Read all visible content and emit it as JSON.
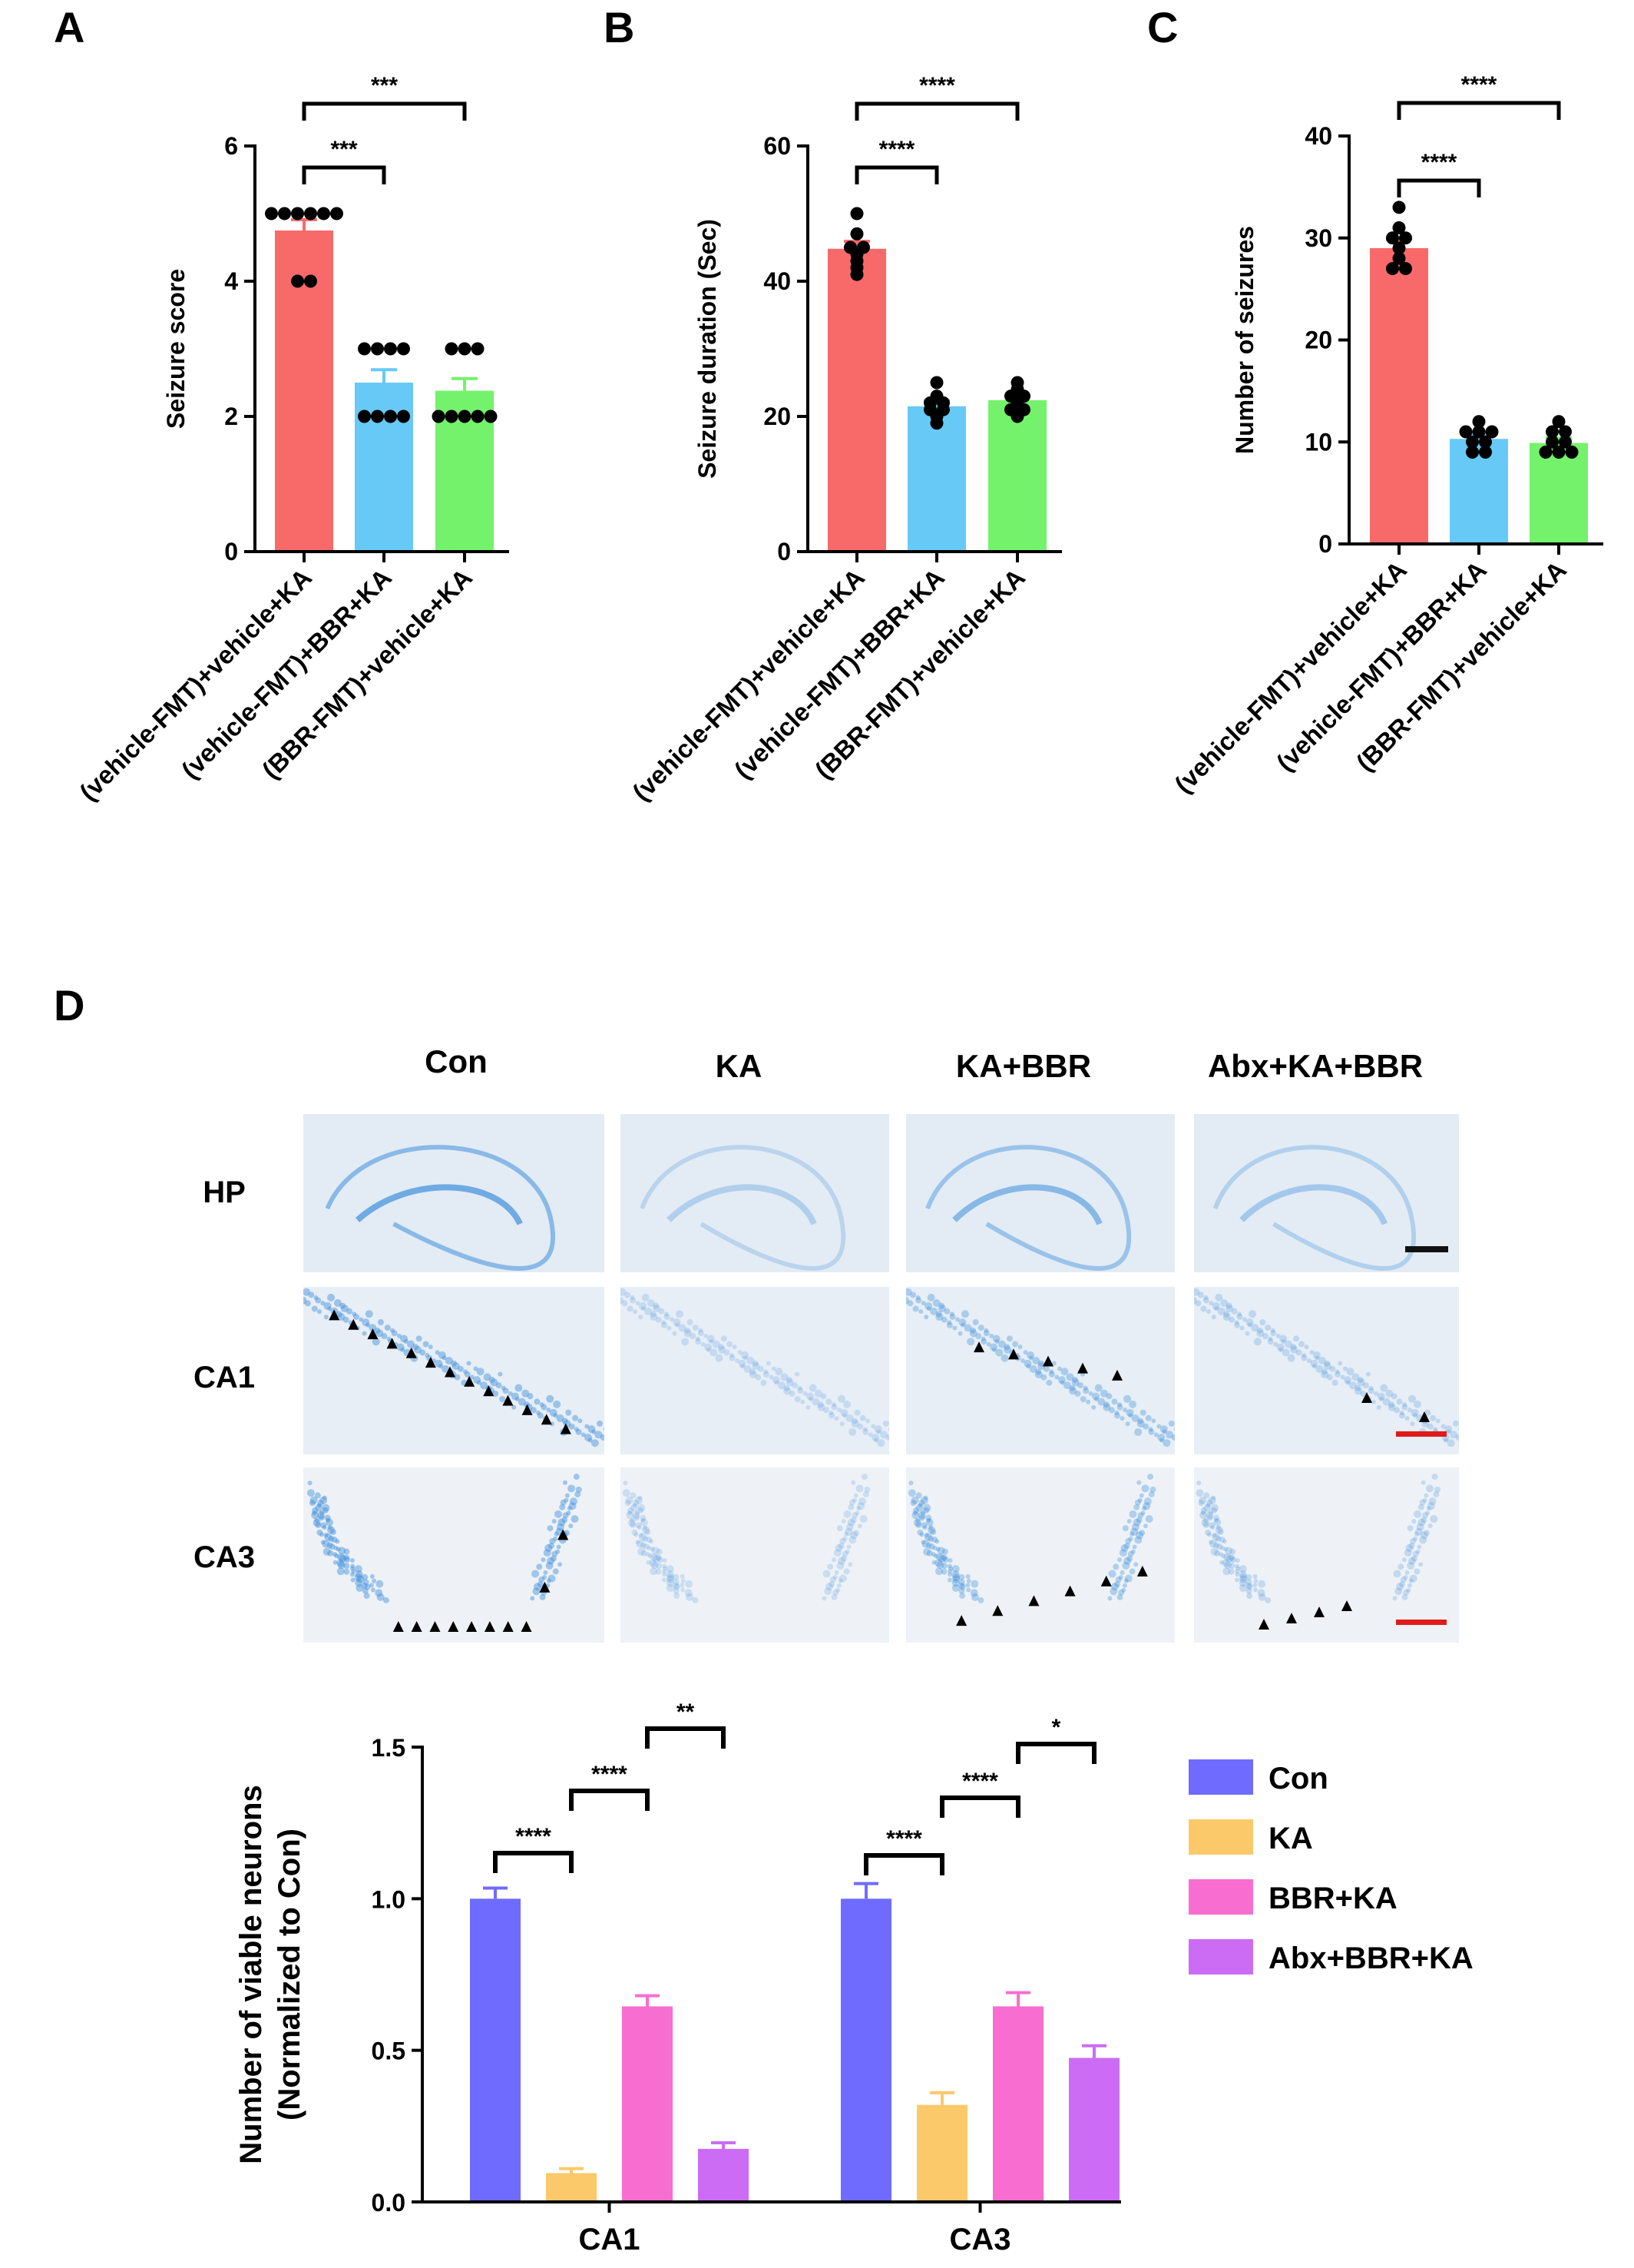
{
  "panels": {
    "A": "A",
    "B": "B",
    "C": "C",
    "D": "D"
  },
  "chart_data": [
    {
      "id": "A",
      "type": "bar",
      "ylabel": "Seizure score",
      "ylim": [
        0,
        6
      ],
      "yticks": [
        0,
        2,
        4,
        6
      ],
      "categories": [
        "(vehicle-FMT)+vehicle+KA",
        "(vehicle-FMT)+BBR+KA",
        "(BBR-FMT)+vehicle+KA"
      ],
      "values": [
        4.75,
        2.5,
        2.38
      ],
      "errors": [
        0.16,
        0.19,
        0.18
      ],
      "colors": [
        "#f86a6a",
        "#67c9f6",
        "#74f26c"
      ],
      "points": [
        [
          5,
          5,
          5,
          5,
          5,
          5,
          4,
          4
        ],
        [
          3,
          3,
          3,
          3,
          2,
          2,
          2,
          2
        ],
        [
          3,
          3,
          3,
          2,
          2,
          2,
          2,
          2
        ]
      ],
      "significance": [
        {
          "from": 0,
          "to": 1,
          "label": "***"
        },
        {
          "from": 0,
          "to": 2,
          "label": "***"
        }
      ]
    },
    {
      "id": "B",
      "type": "bar",
      "ylabel": "Seizure duration (Sec)",
      "ylim": [
        0,
        60
      ],
      "yticks": [
        0,
        20,
        40,
        60
      ],
      "categories": [
        "(vehicle-FMT)+vehicle+KA",
        "(vehicle-FMT)+BBR+KA",
        "(BBR-FMT)+vehicle+KA"
      ],
      "values": [
        44.8,
        21.5,
        22.4
      ],
      "errors": [
        1.1,
        0.8,
        0.7
      ],
      "colors": [
        "#f86a6a",
        "#67c9f6",
        "#74f26c"
      ],
      "points": [
        [
          50,
          47,
          45,
          44,
          45,
          43,
          41,
          42
        ],
        [
          25,
          23,
          22,
          21,
          20,
          19,
          21,
          22
        ],
        [
          25,
          24,
          23,
          22,
          21,
          20,
          21,
          23
        ]
      ],
      "significance": [
        {
          "from": 0,
          "to": 1,
          "label": "****"
        },
        {
          "from": 0,
          "to": 2,
          "label": "****"
        }
      ]
    },
    {
      "id": "C",
      "type": "bar",
      "ylabel": "Number of seizures",
      "ylim": [
        0,
        40
      ],
      "yticks": [
        0,
        10,
        20,
        30,
        40
      ],
      "categories": [
        "(vehicle-FMT)+vehicle+KA",
        "(vehicle-FMT)+BBR+KA",
        "(BBR-FMT)+vehicle+KA"
      ],
      "values": [
        29,
        10.3,
        9.9
      ],
      "errors": [
        0.9,
        0.5,
        0.5
      ],
      "colors": [
        "#f86a6a",
        "#67c9f6",
        "#74f26c"
      ],
      "points": [
        [
          33,
          31,
          30,
          29,
          28,
          27,
          27,
          30
        ],
        [
          12,
          11,
          11,
          10,
          10,
          9,
          9,
          11
        ],
        [
          12,
          11,
          10,
          10,
          9,
          9,
          9,
          11
        ]
      ],
      "significance": [
        {
          "from": 0,
          "to": 1,
          "label": "****"
        },
        {
          "from": 0,
          "to": 2,
          "label": "****"
        }
      ]
    },
    {
      "id": "D",
      "type": "bar",
      "ylabel": "Number of viable neurons (Normalized to Con)",
      "ylabel_lines": [
        "Number of viable neurons",
        "(Normalized to Con)"
      ],
      "ylim": [
        0,
        1.5
      ],
      "yticks": [
        "0.0",
        "0.5",
        "1.0",
        "1.5"
      ],
      "groups": [
        "CA1",
        "CA3"
      ],
      "series": [
        {
          "name": "Con",
          "color": "#6f6bff",
          "values": [
            1.0,
            1.0
          ],
          "errors": [
            0.035,
            0.05
          ]
        },
        {
          "name": "KA",
          "color": "#fbc86a",
          "values": [
            0.095,
            0.32
          ],
          "errors": [
            0.015,
            0.04
          ]
        },
        {
          "name": "BBR+KA",
          "color": "#f86ed0",
          "values": [
            0.645,
            0.645
          ],
          "errors": [
            0.035,
            0.045
          ]
        },
        {
          "name": "Abx+BBR+KA",
          "color": "#cc6cf4",
          "values": [
            0.175,
            0.475
          ],
          "errors": [
            0.02,
            0.04
          ]
        }
      ],
      "significance": [
        {
          "group": 0,
          "from": 0,
          "to": 1,
          "label": "****"
        },
        {
          "group": 0,
          "from": 1,
          "to": 2,
          "label": "****"
        },
        {
          "group": 0,
          "from": 2,
          "to": 3,
          "label": "**"
        },
        {
          "group": 1,
          "from": 0,
          "to": 1,
          "label": "****"
        },
        {
          "group": 1,
          "from": 1,
          "to": 2,
          "label": "****"
        },
        {
          "group": 1,
          "from": 2,
          "to": 3,
          "label": "*"
        }
      ],
      "legend_position": "right"
    }
  ],
  "micrographs": {
    "columns": [
      "Con",
      "KA",
      "KA+BBR",
      "Abx+KA+BBR"
    ],
    "rows": [
      "HP",
      "CA1",
      "CA3"
    ],
    "stain_color": "#3f8fdc",
    "scale_bar_colors": {
      "HP": "#111111",
      "CA1": "#e01a1a",
      "CA3": "#e01a1a"
    },
    "arrow_counts": {
      "CA1": [
        13,
        0,
        5,
        2
      ],
      "CA3": [
        10,
        0,
        6,
        4
      ]
    }
  }
}
